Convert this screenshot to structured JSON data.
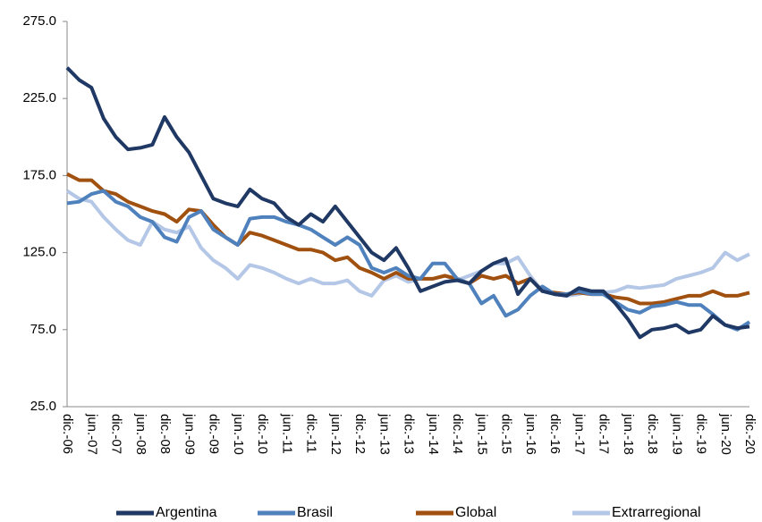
{
  "chart_data": {
    "type": "line",
    "categories": [
      "dic.-06",
      null,
      "jun.-07",
      null,
      "dic.-07",
      null,
      "jun.-08",
      null,
      "dic.-08",
      null,
      "jun.-09",
      null,
      "dic.-09",
      null,
      "jun.-10",
      null,
      "dic.-10",
      null,
      "jun.-11",
      null,
      "dic.-11",
      null,
      "jun.-12",
      null,
      "dic.-12",
      null,
      "jun.-13",
      null,
      "dic.-13",
      null,
      "jun.-14",
      null,
      "dic.-14",
      null,
      "jun.-15",
      null,
      "dic.-15",
      null,
      "jun.-16",
      null,
      "dic.-16",
      null,
      "jun.-17",
      null,
      "dic.-17",
      null,
      "jun.-18",
      null,
      "dic.-18",
      null,
      "jun.-19",
      null,
      "dic.-19",
      null,
      "jun.-20",
      null,
      "dic.-20"
    ],
    "series": [
      {
        "name": "Argentina",
        "color": "#1f3864",
        "values": [
          245,
          237,
          232,
          212,
          200,
          192,
          193,
          195,
          213,
          200,
          190,
          175,
          160,
          157,
          155,
          166,
          160,
          157,
          148,
          143,
          150,
          145,
          155,
          145,
          135,
          125,
          120,
          128,
          115,
          100,
          103,
          106,
          107,
          105,
          113,
          118,
          121,
          98,
          108,
          100,
          98,
          97,
          102,
          100,
          100,
          92,
          82,
          70,
          75,
          76,
          78,
          73,
          75,
          84,
          78,
          76,
          77
        ]
      },
      {
        "name": "Brasil",
        "color": "#4f81bd",
        "values": [
          157,
          158,
          163,
          165,
          158,
          155,
          148,
          145,
          135,
          132,
          148,
          152,
          140,
          135,
          130,
          147,
          148,
          148,
          145,
          143,
          140,
          135,
          130,
          135,
          130,
          115,
          112,
          115,
          110,
          108,
          118,
          118,
          108,
          105,
          92,
          97,
          84,
          88,
          97,
          103,
          98,
          98,
          100,
          98,
          98,
          93,
          88,
          86,
          90,
          91,
          93,
          91,
          91,
          85,
          78,
          75,
          80
        ]
      },
      {
        "name": "Global",
        "color": "#a0500f",
        "values": [
          176,
          172,
          172,
          165,
          163,
          158,
          155,
          152,
          150,
          145,
          153,
          152,
          143,
          135,
          130,
          138,
          136,
          133,
          130,
          127,
          127,
          125,
          120,
          122,
          115,
          112,
          108,
          112,
          108,
          108,
          108,
          110,
          108,
          105,
          110,
          108,
          110,
          105,
          108,
          100,
          99,
          98,
          99,
          98,
          98,
          96,
          95,
          92,
          92,
          93,
          95,
          97,
          97,
          100,
          97,
          97,
          99
        ]
      },
      {
        "name": "Extrarregional",
        "color": "#b4c7e7",
        "values": [
          165,
          160,
          158,
          148,
          140,
          133,
          130,
          145,
          140,
          138,
          142,
          128,
          120,
          115,
          108,
          117,
          115,
          112,
          108,
          105,
          108,
          105,
          105,
          107,
          100,
          97,
          107,
          110,
          106,
          108,
          108,
          110,
          107,
          110,
          113,
          118,
          118,
          122,
          110,
          100,
          98,
          97,
          98,
          100,
          99,
          100,
          103,
          102,
          103,
          104,
          108,
          110,
          112,
          115,
          125,
          120,
          124
        ]
      }
    ],
    "ylim": [
      25,
      275
    ],
    "yticks": [
      {
        "value": 25,
        "label": "25.0"
      },
      {
        "value": 75,
        "label": "75.0"
      },
      {
        "value": 125,
        "label": "125.0"
      },
      {
        "value": 175,
        "label": "175.0"
      },
      {
        "value": 225,
        "label": "225.0"
      },
      {
        "value": 275,
        "label": "275.0"
      }
    ],
    "grid": false,
    "legend": "bottom"
  }
}
